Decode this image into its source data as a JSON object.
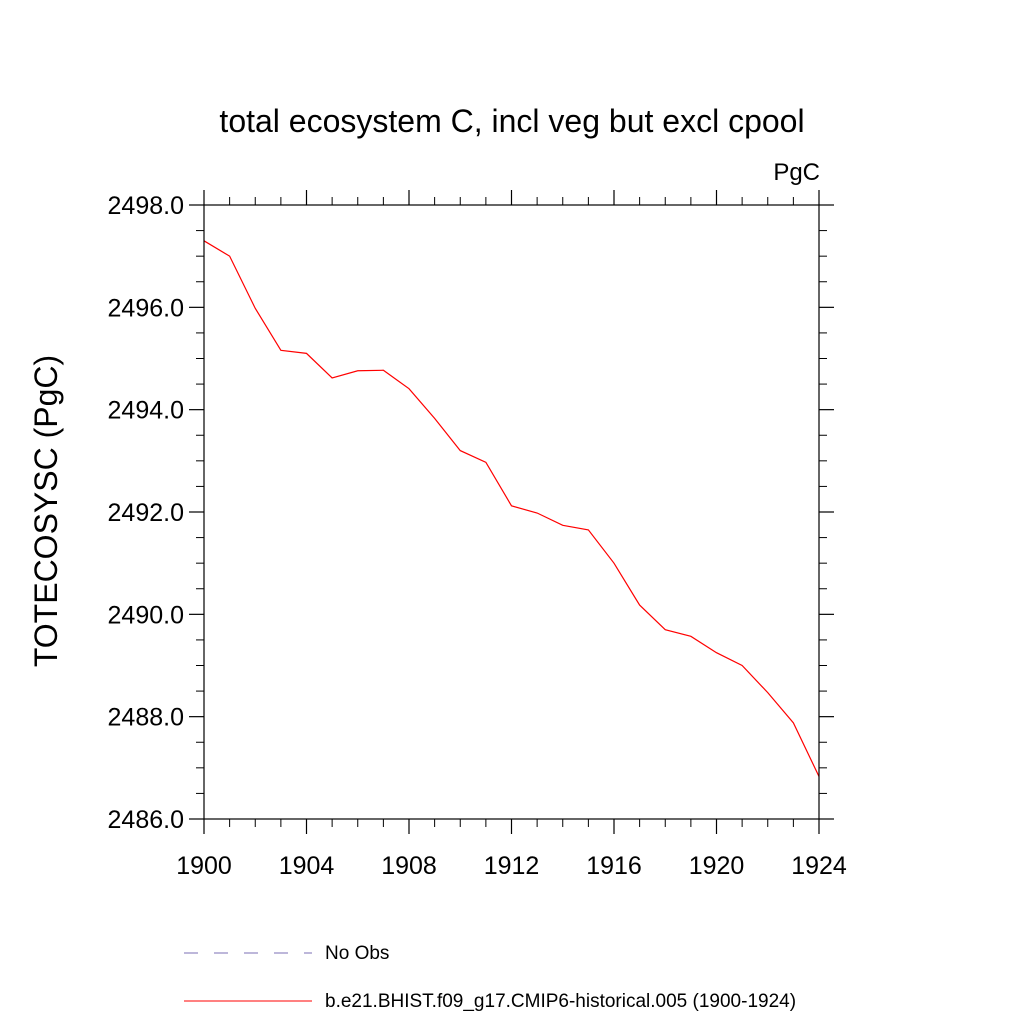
{
  "chart_data": {
    "type": "line",
    "title": "total ecosystem C, incl veg but excl cpool",
    "units": "PgC",
    "ylabel": "TOTECOSYSC  (PgC)",
    "xlabel": "",
    "xlim": [
      1900,
      1924
    ],
    "ylim": [
      2486.0,
      2498.0
    ],
    "x_ticks": [
      1900,
      1904,
      1908,
      1912,
      1916,
      1920,
      1924
    ],
    "x_tick_labels": [
      "1900",
      "1904",
      "1908",
      "1912",
      "1916",
      "1920",
      "1924"
    ],
    "x_minor_step": 1,
    "y_ticks": [
      2486.0,
      2488.0,
      2490.0,
      2492.0,
      2494.0,
      2496.0,
      2498.0
    ],
    "y_tick_labels": [
      "2486.0",
      "2488.0",
      "2490.0",
      "2492.0",
      "2494.0",
      "2496.0",
      "2498.0"
    ],
    "y_minor_step": 0.5,
    "grid": false,
    "legend_position": "bottom-left",
    "series": [
      {
        "name": "b.e21.BHIST.f09_g17.CMIP6-historical.005 (1900-1924)",
        "color": "#ff0000",
        "style": "solid",
        "x": [
          1900,
          1901,
          1902,
          1903,
          1904,
          1905,
          1906,
          1907,
          1908,
          1909,
          1910,
          1911,
          1912,
          1913,
          1914,
          1915,
          1916,
          1917,
          1918,
          1919,
          1920,
          1921,
          1922,
          1923,
          1924
        ],
        "y": [
          2497.3,
          2497.0,
          2495.98,
          2495.16,
          2495.1,
          2494.62,
          2494.76,
          2494.77,
          2494.41,
          2493.83,
          2493.2,
          2492.97,
          2492.12,
          2491.98,
          2491.74,
          2491.65,
          2491.0,
          2490.18,
          2489.7,
          2489.57,
          2489.25,
          2489.0,
          2488.47,
          2487.88,
          2486.83
        ]
      }
    ],
    "legend": [
      {
        "label": "No Obs",
        "color": "#7b6fb5",
        "style": "dashed"
      },
      {
        "label": "b.e21.BHIST.f09_g17.CMIP6-historical.005 (1900-1924)",
        "color": "#ff0000",
        "style": "solid"
      }
    ]
  }
}
